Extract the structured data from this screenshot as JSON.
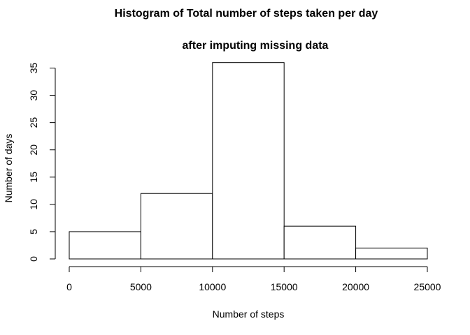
{
  "chart_data": {
    "type": "bar",
    "title_line1": "Histogram of Total number of steps taken per day",
    "title_line2": "after imputing missing data",
    "xlabel": "Number of steps",
    "ylabel": "Number of days",
    "bins": [
      {
        "from": 0,
        "to": 5000,
        "count": 5
      },
      {
        "from": 5000,
        "to": 10000,
        "count": 12
      },
      {
        "from": 10000,
        "to": 15000,
        "count": 36
      },
      {
        "from": 15000,
        "to": 20000,
        "count": 6
      },
      {
        "from": 20000,
        "to": 25000,
        "count": 2
      }
    ],
    "xticks": [
      0,
      5000,
      10000,
      15000,
      20000,
      25000
    ],
    "yticks": [
      0,
      5,
      10,
      15,
      20,
      25,
      30,
      35
    ],
    "xlim": [
      0,
      25000
    ],
    "ylim": [
      0,
      36
    ],
    "grid": false,
    "legend": "none",
    "colors": {
      "bar_fill": "#ffffff",
      "bar_stroke": "#000000"
    }
  }
}
